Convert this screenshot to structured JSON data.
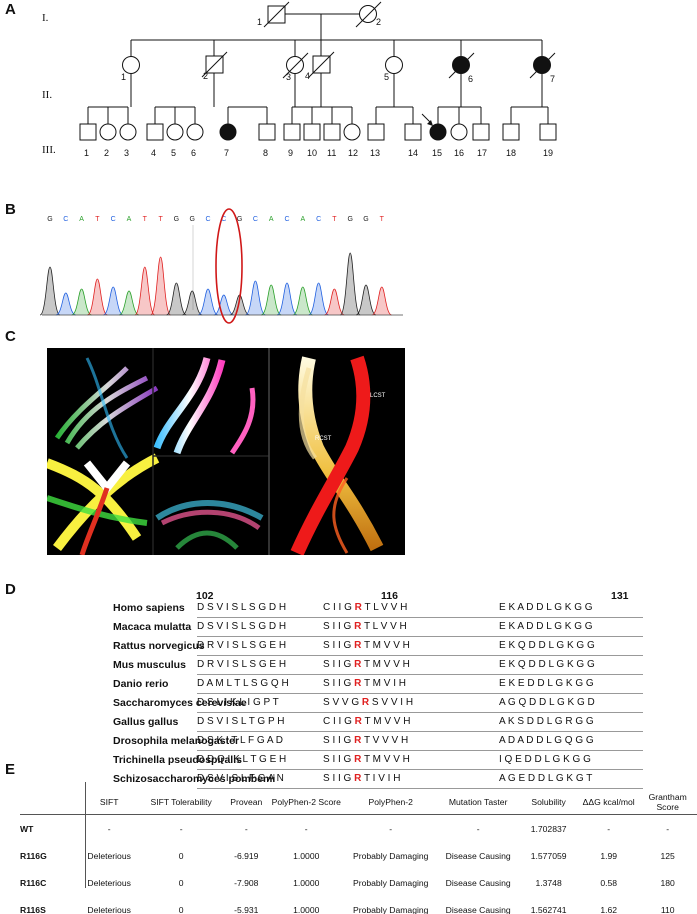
{
  "panels": {
    "A": "A",
    "B": "B",
    "C": "C",
    "D": "D",
    "E": "E"
  },
  "pedigree": {
    "generations": [
      "I.",
      "II.",
      "III."
    ],
    "gen1_ids": [
      "1",
      "2"
    ],
    "gen2_ids": [
      "1",
      "2",
      "3",
      "4",
      "5",
      "6",
      "7"
    ],
    "gen3_ids": [
      "1",
      "2",
      "3",
      "4",
      "5",
      "6",
      "7",
      "8",
      "9",
      "10",
      "11",
      "12",
      "13",
      "14",
      "15",
      "16",
      "17",
      "18",
      "19"
    ]
  },
  "chromatogram": {
    "bases": [
      "G",
      "C",
      "A",
      "T",
      "C",
      "A",
      "T",
      "T",
      "G",
      "G",
      "C",
      "C",
      "G",
      "C",
      "A",
      "C",
      "A",
      "C",
      "T",
      "G",
      "G",
      "T"
    ]
  },
  "mri": {
    "labels": [
      "RCST",
      "LCST"
    ]
  },
  "alignment": {
    "positions": [
      "102",
      "116",
      "131"
    ],
    "rows": [
      {
        "species": "Homo sapiens",
        "a": "D S V I S L S G D H",
        "b": "C I I G ",
        "r": "R",
        "c": " T L V V H",
        "d": "E K A D D L G K G G"
      },
      {
        "species": "Macaca mulatta",
        "a": "D S V I S L S G D H",
        "b": "S I I G ",
        "r": "R",
        "c": " T L V V H",
        "d": "E K A D D L G K G G"
      },
      {
        "species": "Rattus norvegicus",
        "a": "D R V I S L S G E H",
        "b": "S I I G ",
        "r": "R",
        "c": " T M V V H",
        "d": "E K Q D D L G K G G"
      },
      {
        "species": "Mus musculus",
        "a": "D R V I S L S G E H",
        "b": "S I I G ",
        "r": "R",
        "c": " T M V V H",
        "d": "E K Q D D L G K G G"
      },
      {
        "species": "Danio rerio",
        "a": "D A M L T L S G Q H",
        "b": "S I I G ",
        "r": "R",
        "c": " T M V I H",
        "d": "E K E D D L G K G G"
      },
      {
        "species": "Saccharomyces cerevisiae",
        "a": "D S L I K L I G P T",
        "b": "S V V G ",
        "r": "R",
        "c": " S V V I H",
        "d": "A G Q D D L G K G D"
      },
      {
        "species": "Gallus gallus",
        "a": "D S V I S L T G P H",
        "b": "C I I G ",
        "r": "R",
        "c": " T M V V H",
        "d": "A K S D D L G R G G"
      },
      {
        "species": "Drosophila melanogaster",
        "a": "D S K I T L F G A D",
        "b": "S I I G ",
        "r": "R",
        "c": " T V V V H",
        "d": "A D A D D L G Q G G"
      },
      {
        "species": "Trichinella pseudospiralis",
        "a": "D D Q I K L T G E H",
        "b": "S I I G ",
        "r": "R",
        "c": " T M V V H",
        "d": "I Q E D D L G K G G"
      },
      {
        "species": "Schizosaccharomyces pombemi",
        "a": "D S V I S L F G A N",
        "b": "S I I G ",
        "r": "R",
        "c": " T I V I H",
        "d": "A G E D D L G K G T"
      }
    ]
  },
  "table": {
    "headers": [
      "",
      "SIFT",
      "SIFT Tolerability",
      "Provean",
      "PolyPhen-2 Score",
      "PolyPhen-2",
      "Mutation Taster",
      "Solubility",
      "ΔΔG kcal/mol",
      "Grantham Score"
    ],
    "rows": [
      [
        "WT",
        "-",
        "-",
        "-",
        "-",
        "-",
        "-",
        "1.702837",
        "-",
        "-"
      ],
      [
        "R116G",
        "Deleterious",
        "0",
        "-6.919",
        "1.0000",
        "Probably Damaging",
        "Disease Causing",
        "1.577059",
        "1.99",
        "125"
      ],
      [
        "R116C",
        "Deleterious",
        "0",
        "-7.908",
        "1.0000",
        "Probably Damaging",
        "Disease Causing",
        "1.3748",
        "0.58",
        "180"
      ],
      [
        "R116S",
        "Deleterious",
        "0",
        "-5.931",
        "1.0000",
        "Probably Damaging",
        "Disease Causing",
        "1.562741",
        "1.62",
        "110"
      ]
    ]
  },
  "colors": {
    "A": "#2aa02a",
    "C": "#2060e0",
    "G": "#222222",
    "T": "#e02020",
    "highlight": "#e02020"
  }
}
